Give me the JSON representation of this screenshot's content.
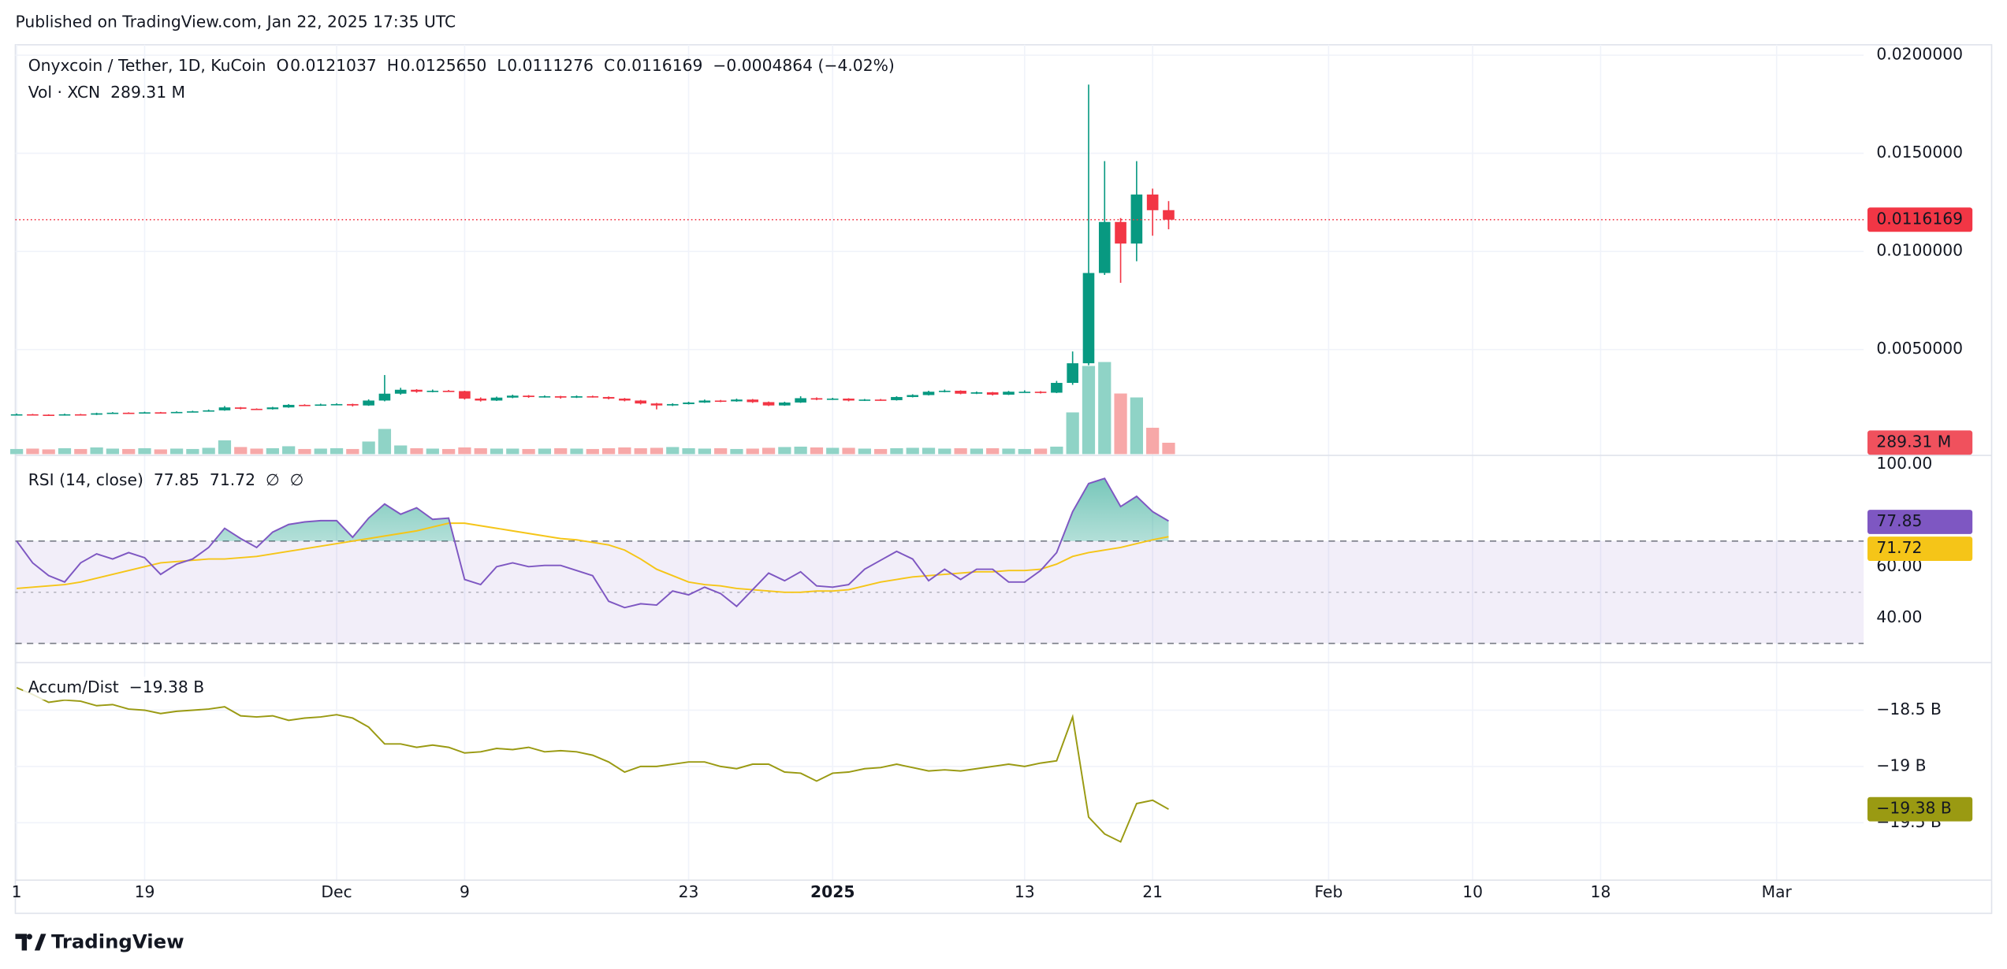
{
  "header": {
    "published": "Published on TradingView.com, Jan 22, 2025 17:35 UTC",
    "brand": "TradingView"
  },
  "x_axis": {
    "xlim": [
      -0.08,
      115.44
    ],
    "xticks": [
      {
        "value": 0,
        "label": "1"
      },
      {
        "value": 8,
        "label": "19"
      },
      {
        "value": 20,
        "label": "Dec"
      },
      {
        "value": 28,
        "label": "9"
      },
      {
        "value": 42,
        "label": "23"
      },
      {
        "value": 51,
        "label": "2025"
      },
      {
        "value": 63,
        "label": "13"
      },
      {
        "value": 71,
        "label": "21"
      },
      {
        "value": 82,
        "label": "Feb"
      },
      {
        "value": 91,
        "label": "10"
      },
      {
        "value": 99,
        "label": "18"
      },
      {
        "value": 110,
        "label": "Mar"
      }
    ],
    "grid": true
  },
  "chart_data": [
    {
      "type": "candlestick",
      "title": "Onyxcoin / Tether, 1D, KuCoin",
      "ohlc_legend": [
        {
          "key": "O",
          "value": "0.0121037"
        },
        {
          "key": "H",
          "value": "0.0125650"
        },
        {
          "key": "L",
          "value": "0.0111276"
        },
        {
          "key": "C",
          "value": "0.0116169"
        }
      ],
      "change": "−0.0004864 (−4.02%)",
      "up_color": "#089981",
      "down_color": "#f23645",
      "open": [
        0.00168,
        0.0017,
        0.00168,
        0.00165,
        0.0017,
        0.00168,
        0.00175,
        0.00178,
        0.00176,
        0.0018,
        0.00178,
        0.00182,
        0.00185,
        0.0019,
        0.00205,
        0.00198,
        0.00196,
        0.00205,
        0.00218,
        0.00215,
        0.0022,
        0.00222,
        0.00215,
        0.0024,
        0.00275,
        0.00295,
        0.00285,
        0.0029,
        0.00288,
        0.0025,
        0.0024,
        0.00255,
        0.00265,
        0.00258,
        0.00262,
        0.00255,
        0.00262,
        0.00258,
        0.0025,
        0.0024,
        0.00225,
        0.00215,
        0.00222,
        0.0023,
        0.0024,
        0.00236,
        0.00245,
        0.00232,
        0.00215,
        0.0023,
        0.00252,
        0.00245,
        0.0025,
        0.0024,
        0.00245,
        0.00242,
        0.00258,
        0.00268,
        0.00285,
        0.0029,
        0.00275,
        0.00282,
        0.0027,
        0.00285,
        0.00285,
        0.0028,
        0.0033,
        0.0043,
        0.0089,
        0.0115,
        0.0104,
        0.0129,
        0.0121037
      ],
      "high": [
        0.00174,
        0.00172,
        0.0017,
        0.00173,
        0.00172,
        0.00178,
        0.00181,
        0.0018,
        0.00183,
        0.00182,
        0.00185,
        0.00188,
        0.00194,
        0.00212,
        0.00207,
        0.002,
        0.00208,
        0.00222,
        0.00221,
        0.00224,
        0.00226,
        0.00224,
        0.00246,
        0.0037,
        0.00305,
        0.00298,
        0.00296,
        0.00294,
        0.0029,
        0.00256,
        0.0026,
        0.0027,
        0.00268,
        0.00266,
        0.00264,
        0.00266,
        0.00265,
        0.00261,
        0.00253,
        0.00243,
        0.00228,
        0.00226,
        0.00234,
        0.00245,
        0.00243,
        0.0025,
        0.00248,
        0.00235,
        0.00234,
        0.00262,
        0.00256,
        0.00254,
        0.00252,
        0.00248,
        0.00248,
        0.00262,
        0.00272,
        0.0029,
        0.00296,
        0.00292,
        0.00286,
        0.00284,
        0.00289,
        0.00292,
        0.00288,
        0.0034,
        0.0049,
        0.0185,
        0.0146,
        0.0117,
        0.0146,
        0.0132,
        0.012565
      ],
      "low": [
        0.00165,
        0.00165,
        0.00162,
        0.00163,
        0.00165,
        0.00166,
        0.00173,
        0.00173,
        0.00174,
        0.00175,
        0.00176,
        0.0018,
        0.00183,
        0.00188,
        0.00195,
        0.00192,
        0.00194,
        0.00203,
        0.00212,
        0.00213,
        0.00216,
        0.0021,
        0.00213,
        0.00236,
        0.0027,
        0.0028,
        0.00282,
        0.00284,
        0.00245,
        0.00235,
        0.00238,
        0.00252,
        0.00254,
        0.00255,
        0.0025,
        0.00253,
        0.00255,
        0.00246,
        0.00236,
        0.0022,
        0.00195,
        0.00212,
        0.0022,
        0.00228,
        0.00232,
        0.00234,
        0.00228,
        0.00212,
        0.00213,
        0.00228,
        0.00242,
        0.00243,
        0.00236,
        0.00238,
        0.00239,
        0.0024,
        0.00256,
        0.00266,
        0.00282,
        0.00272,
        0.00273,
        0.00266,
        0.00268,
        0.0028,
        0.00276,
        0.00278,
        0.0032,
        0.0042,
        0.0088,
        0.0084,
        0.0095,
        0.0108,
        0.0111276
      ],
      "close": [
        0.0017,
        0.00168,
        0.00165,
        0.0017,
        0.00168,
        0.00175,
        0.00178,
        0.00176,
        0.0018,
        0.00178,
        0.00182,
        0.00185,
        0.0019,
        0.00205,
        0.00198,
        0.00196,
        0.00205,
        0.00218,
        0.00215,
        0.0022,
        0.00222,
        0.00215,
        0.0024,
        0.00275,
        0.00295,
        0.00285,
        0.0029,
        0.00288,
        0.0025,
        0.0024,
        0.00255,
        0.00265,
        0.00258,
        0.00262,
        0.00255,
        0.00262,
        0.00258,
        0.0025,
        0.0024,
        0.00225,
        0.00215,
        0.00222,
        0.0023,
        0.0024,
        0.00236,
        0.00245,
        0.00232,
        0.00215,
        0.0023,
        0.00252,
        0.00245,
        0.0025,
        0.0024,
        0.00245,
        0.00242,
        0.00258,
        0.00268,
        0.00285,
        0.0029,
        0.00275,
        0.00282,
        0.0027,
        0.00285,
        0.00285,
        0.0028,
        0.0033,
        0.0043,
        0.0089,
        0.0115,
        0.0104,
        0.0129,
        0.0121,
        0.0116169
      ],
      "volume": {
        "name": "Vol · XCN",
        "last_label": "289.31 M",
        "up_color": "#8fd3c6",
        "down_color": "#f7a8a8",
        "values": [
          130,
          140,
          120,
          150,
          130,
          170,
          140,
          130,
          150,
          120,
          140,
          130,
          160,
          350,
          180,
          140,
          150,
          200,
          130,
          140,
          150,
          130,
          320,
          640,
          220,
          150,
          140,
          130,
          170,
          150,
          140,
          140,
          130,
          140,
          150,
          140,
          130,
          150,
          170,
          150,
          160,
          180,
          150,
          140,
          150,
          130,
          140,
          160,
          180,
          190,
          170,
          160,
          160,
          140,
          130,
          150,
          160,
          160,
          140,
          150,
          140,
          150,
          140,
          130,
          140,
          190,
          1060,
          2240,
          2340,
          1540,
          1440,
          670,
          289.31
        ]
      },
      "ylim": [
        -0.00033,
        0.02053
      ],
      "yticks": [
        {
          "value": 0.02,
          "label": "0.0200000"
        },
        {
          "value": 0.015,
          "label": "0.0150000"
        },
        {
          "value": 0.01,
          "label": "0.0100000"
        },
        {
          "value": 0.005,
          "label": "0.0050000"
        }
      ],
      "grid": true
    },
    {
      "type": "line",
      "title": "RSI (14, close)",
      "extras": [
        "∅",
        "∅"
      ],
      "series": [
        {
          "name": "RSI",
          "color": "#7e57c2",
          "values": [
            70,
            61.5,
            56.5,
            54,
            61.5,
            65,
            63,
            65.5,
            63.5,
            57,
            61,
            63,
            67.5,
            75,
            71,
            67.5,
            73.5,
            76.5,
            77.5,
            78,
            78,
            71.5,
            79,
            84.5,
            80.5,
            83,
            78.5,
            79,
            55,
            53,
            60,
            61.5,
            60,
            60.5,
            60.5,
            58.5,
            56.5,
            46.5,
            44,
            45.5,
            45,
            50.5,
            49,
            52,
            49.5,
            44.5,
            51,
            57.5,
            54.5,
            58,
            52.5,
            52,
            53,
            59,
            62.5,
            66,
            63,
            54.5,
            59,
            55,
            59,
            59,
            54,
            54,
            58.5,
            65.5,
            81.5,
            92.5,
            94.5,
            83.5,
            87.5,
            81.5,
            77.85
          ]
        },
        {
          "name": "RSI-based MA",
          "color": "#f5c518",
          "values": [
            51.5,
            52,
            52.5,
            53,
            54,
            55.5,
            57,
            58.5,
            60,
            61.5,
            62,
            62.5,
            63,
            63,
            63.5,
            64,
            65,
            66,
            67,
            68,
            69,
            70,
            71,
            72,
            73,
            74,
            75.5,
            77,
            77,
            76,
            75,
            74,
            73,
            72,
            71,
            70.5,
            69.5,
            68.5,
            66.5,
            63,
            59,
            56.5,
            54,
            53,
            52.5,
            51.5,
            51,
            50.5,
            50,
            50,
            50.5,
            50.5,
            51,
            52.5,
            54,
            55,
            56,
            56.5,
            57,
            57.5,
            58,
            58,
            58.5,
            58.5,
            59,
            61,
            64,
            65.5,
            66.5,
            67.5,
            69,
            70.5,
            71.72
          ]
        }
      ],
      "bands": [
        70,
        50,
        30
      ],
      "ylim": [
        23,
        103
      ],
      "yticks": [
        {
          "value": 100,
          "label": "100.00"
        },
        {
          "value": 60,
          "label": "60.00"
        },
        {
          "value": 40,
          "label": "40.00"
        }
      ]
    },
    {
      "type": "line",
      "title": "Accum/Dist",
      "color": "#9a9a12",
      "last_label": "−19.38 B",
      "values": [
        -18.3,
        -18.36,
        -18.43,
        -18.41,
        -18.42,
        -18.46,
        -18.45,
        -18.49,
        -18.5,
        -18.53,
        -18.51,
        -18.5,
        -18.49,
        -18.47,
        -18.55,
        -18.56,
        -18.55,
        -18.59,
        -18.57,
        -18.56,
        -18.54,
        -18.57,
        -18.65,
        -18.8,
        -18.8,
        -18.83,
        -18.81,
        -18.83,
        -18.88,
        -18.87,
        -18.84,
        -18.85,
        -18.83,
        -18.87,
        -18.86,
        -18.87,
        -18.9,
        -18.96,
        -19.05,
        -19.0,
        -19.0,
        -18.98,
        -18.96,
        -18.96,
        -19.0,
        -19.02,
        -18.98,
        -18.98,
        -19.05,
        -19.06,
        -19.13,
        -19.06,
        -19.05,
        -19.02,
        -19.01,
        -18.98,
        -19.01,
        -19.04,
        -19.03,
        -19.04,
        -19.02,
        -19.0,
        -18.98,
        -19.0,
        -18.97,
        -18.95,
        -18.56,
        -19.45,
        -19.6,
        -19.67,
        -19.33,
        -19.3,
        -19.38
      ],
      "ylim": [
        -20.01,
        -18.1
      ],
      "yticks": [
        {
          "value": -18.5,
          "label": "−18.5 B"
        },
        {
          "value": -19,
          "label": "−19 B"
        },
        {
          "value": -19.5,
          "label": "−19.5 B"
        }
      ]
    }
  ]
}
